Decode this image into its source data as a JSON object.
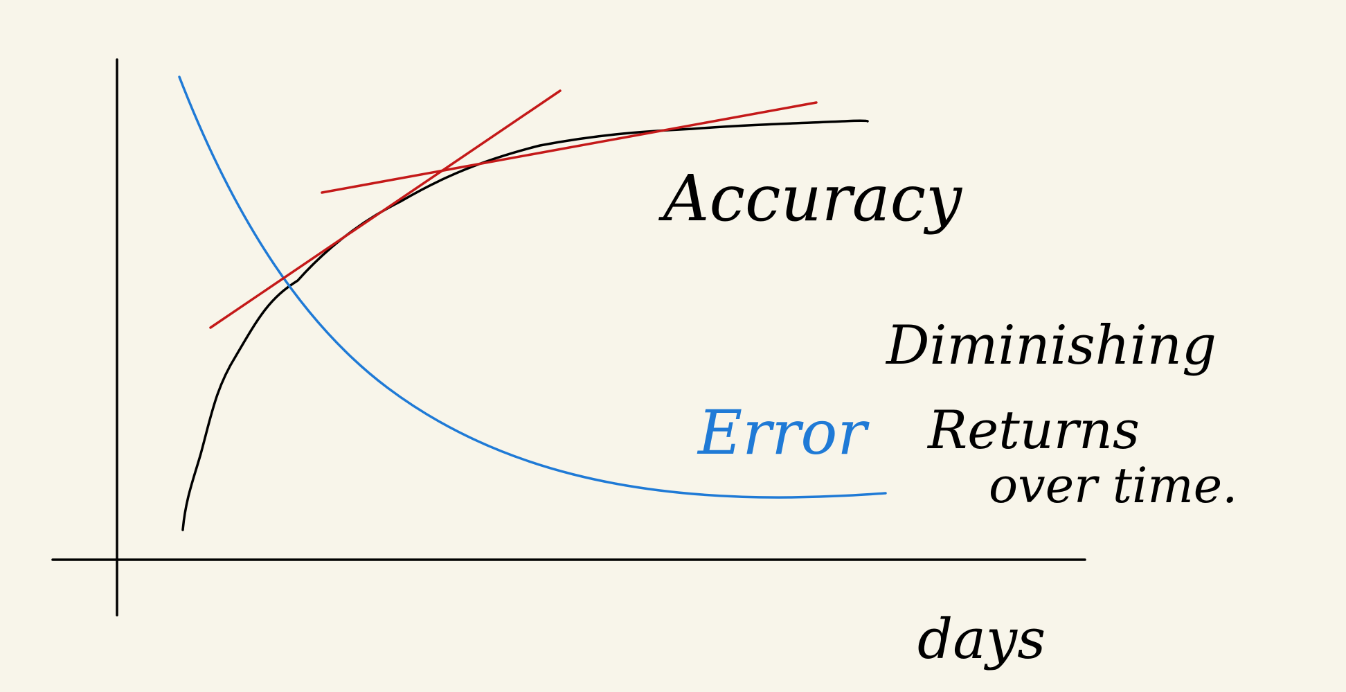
{
  "colors": {
    "background": "#f8f5ea",
    "ink": "#000000",
    "error_curve": "#1f7ad6",
    "tangent_lines": "#c41919"
  },
  "labels": {
    "accuracy": "Accuracy",
    "error": "Error",
    "diminishing_line1": "Diminishing",
    "diminishing_line2": "Returns",
    "diminishing_line3": "over time.",
    "x_axis": "days"
  },
  "chart_data": {
    "type": "line",
    "xlabel": "days",
    "ylabel": "",
    "series": [
      {
        "name": "Accuracy",
        "color": "#000000",
        "trend": "increasing, flattening over time"
      },
      {
        "name": "Error",
        "color": "#1f7ad6",
        "trend": "decreasing, flattening over time"
      }
    ],
    "annotations": [
      "Diminishing Returns over time."
    ],
    "tangent_lines": 2
  }
}
